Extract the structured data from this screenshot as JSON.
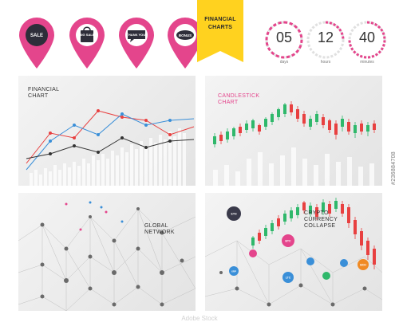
{
  "pins": [
    {
      "label": "SALE",
      "color": "#e4458c"
    },
    {
      "label": "BIG SALE",
      "color": "#e4458c"
    },
    {
      "label": "THANK YOU!",
      "color": "#e4458c"
    },
    {
      "label": "BONUS",
      "color": "#e4458c"
    }
  ],
  "banner": {
    "text": "FINANCIAL\nCHARTS",
    "color": "#ffd21f"
  },
  "timers": [
    {
      "value": "05",
      "caption": "days"
    },
    {
      "value": "12",
      "caption": "hours"
    },
    {
      "value": "40",
      "caption": "minutes"
    }
  ],
  "panels": {
    "financial": {
      "title": "FINANCIAL\nCHART"
    },
    "candlestick": {
      "title": "CANDLESTICK\nCHART",
      "color": "#e4458c"
    },
    "network": {
      "title": "GLOBAL\nNETWORK"
    },
    "crypto": {
      "title": "CRYPTO\nCURRENCY\nCOLLAPSE"
    }
  },
  "coins": [
    {
      "label": "ETH",
      "color": "#3a3a4a"
    },
    {
      "label": "BTC",
      "color": "#e4458c"
    },
    {
      "label": "XRP",
      "color": "#3a8fd8"
    },
    {
      "label": "LTC",
      "color": "#3a8fd8"
    },
    {
      "label": "BCH",
      "color": "#f08a24"
    }
  ],
  "watermark": "Adobe Stock",
  "side_id": "#236884708",
  "accent": {
    "pink": "#e4458c",
    "blue": "#3a8fd8",
    "red": "#e84040",
    "green": "#2fb86b",
    "yellow": "#ffd21f"
  }
}
